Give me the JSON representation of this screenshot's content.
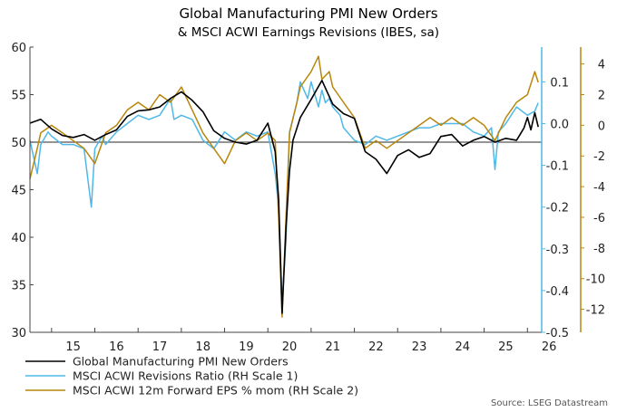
{
  "chart_data": {
    "type": "line",
    "title": "Global Manufacturing PMI New Orders",
    "subtitle": "& MSCI ACWI Earnings Revisions (IBES, sa)",
    "source": "Source: LSEG Datastream",
    "x_tick_labels": [
      "15",
      "16",
      "17",
      "18",
      "19",
      "20",
      "21",
      "22",
      "23",
      "24",
      "25",
      "26"
    ],
    "x_range": [
      2014.5,
      2026.33
    ],
    "left_axis": {
      "ylim": [
        30,
        60
      ],
      "ticks": [
        "30",
        "35",
        "40",
        "45",
        "50",
        "55",
        "60"
      ]
    },
    "right_axis_1": {
      "ylim": [
        -0.5,
        0.1833
      ],
      "ticks": [
        "-0.5",
        "-0.4",
        "-0.3",
        "-0.2",
        "-0.1",
        "0.0",
        "0.1"
      ],
      "color": "#4fb8e8"
    },
    "right_axis_2": {
      "ylim": [
        -13.5,
        5.1
      ],
      "ticks": [
        "-12",
        "-10",
        "-8",
        "-6",
        "-4",
        "-2",
        "0",
        "2",
        "4"
      ],
      "color": "#b8860b"
    },
    "reference_line": {
      "value": 50,
      "axis": "left"
    },
    "legend_placement": "bottom-left",
    "series": [
      {
        "name": "Global Manufacturing PMI New Orders",
        "axis": "left",
        "color": "#000000",
        "x": [
          2014.5,
          2014.75,
          2015.0,
          2015.25,
          2015.5,
          2015.75,
          2016.0,
          2016.25,
          2016.5,
          2016.75,
          2017.0,
          2017.25,
          2017.5,
          2017.75,
          2018.0,
          2018.25,
          2018.5,
          2018.75,
          2019.0,
          2019.25,
          2019.5,
          2019.75,
          2020.0,
          2020.17,
          2020.25,
          2020.33,
          2020.42,
          2020.5,
          2020.58,
          2020.75,
          2021.0,
          2021.25,
          2021.5,
          2021.75,
          2022.0,
          2022.25,
          2022.5,
          2022.75,
          2023.0,
          2023.25,
          2023.5,
          2023.75,
          2024.0,
          2024.25,
          2024.5,
          2024.75,
          2025.0,
          2025.25,
          2025.5,
          2025.75,
          2025.92,
          2026.0,
          2026.08,
          2026.17,
          2026.25
        ],
        "values": [
          52.0,
          52.4,
          51.4,
          50.7,
          50.5,
          50.8,
          50.2,
          50.8,
          51.3,
          52.7,
          53.3,
          53.4,
          53.7,
          54.6,
          55.3,
          54.4,
          53.2,
          51.2,
          50.4,
          50.0,
          49.8,
          50.2,
          52.0,
          49.0,
          44.0,
          32.0,
          41.0,
          47.0,
          50.2,
          52.6,
          54.5,
          56.5,
          54.0,
          53.0,
          52.5,
          49.0,
          48.2,
          46.7,
          48.6,
          49.2,
          48.4,
          48.8,
          50.6,
          50.8,
          49.6,
          50.2,
          50.6,
          50.0,
          50.4,
          50.2,
          51.5,
          52.6,
          51.3,
          53.1,
          51.6
        ]
      },
      {
        "name": "MSCI ACWI Revisions Ratio (RH Scale 1)",
        "axis": "right_1",
        "color": "#4fb8e8",
        "x": [
          2014.5,
          2014.67,
          2014.75,
          2014.92,
          2015.0,
          2015.25,
          2015.5,
          2015.75,
          2015.92,
          2016.0,
          2016.17,
          2016.25,
          2016.5,
          2016.75,
          2017.0,
          2017.25,
          2017.5,
          2017.75,
          2017.83,
          2018.0,
          2018.25,
          2018.5,
          2018.75,
          2019.0,
          2019.25,
          2019.5,
          2019.75,
          2020.0,
          2020.17,
          2020.25,
          2020.33,
          2020.42,
          2020.5,
          2020.67,
          2020.75,
          2020.92,
          2021.0,
          2021.17,
          2021.25,
          2021.33,
          2021.42,
          2021.5,
          2021.67,
          2021.75,
          2022.0,
          2022.25,
          2022.5,
          2022.75,
          2023.0,
          2023.25,
          2023.5,
          2023.75,
          2024.0,
          2024.25,
          2024.5,
          2024.75,
          2025.0,
          2025.17,
          2025.25,
          2025.33,
          2025.5,
          2025.75,
          2026.0,
          2026.17,
          2026.25
        ],
        "values": [
          -0.04,
          -0.12,
          -0.05,
          -0.02,
          -0.03,
          -0.05,
          -0.05,
          -0.06,
          -0.2,
          -0.06,
          -0.03,
          -0.05,
          -0.02,
          0.0,
          0.02,
          0.01,
          0.02,
          0.06,
          0.01,
          0.02,
          0.01,
          -0.04,
          -0.06,
          -0.02,
          -0.04,
          -0.02,
          -0.03,
          -0.02,
          -0.12,
          -0.2,
          -0.43,
          -0.28,
          -0.02,
          0.05,
          0.1,
          0.06,
          0.1,
          0.04,
          0.08,
          0.05,
          0.06,
          0.04,
          0.02,
          -0.01,
          -0.04,
          -0.05,
          -0.03,
          -0.04,
          -0.03,
          -0.02,
          -0.01,
          -0.01,
          0.0,
          0.0,
          0.0,
          -0.02,
          -0.03,
          -0.01,
          -0.11,
          -0.02,
          0.0,
          0.04,
          0.02,
          0.03,
          0.05
        ]
      },
      {
        "name": "MSCI ACWI 12m Forward EPS % mom (RH Scale 2)",
        "axis": "right_2",
        "color": "#b8860b",
        "x": [
          2014.5,
          2014.67,
          2014.75,
          2015.0,
          2015.25,
          2015.5,
          2015.75,
          2016.0,
          2016.25,
          2016.5,
          2016.75,
          2017.0,
          2017.25,
          2017.5,
          2017.75,
          2018.0,
          2018.25,
          2018.5,
          2018.75,
          2019.0,
          2019.25,
          2019.5,
          2019.75,
          2020.0,
          2020.17,
          2020.25,
          2020.33,
          2020.42,
          2020.5,
          2020.67,
          2020.75,
          2021.0,
          2021.17,
          2021.25,
          2021.42,
          2021.5,
          2021.75,
          2022.0,
          2022.25,
          2022.5,
          2022.75,
          2023.0,
          2023.25,
          2023.5,
          2023.75,
          2024.0,
          2024.25,
          2024.5,
          2024.75,
          2025.0,
          2025.25,
          2025.5,
          2025.75,
          2026.0,
          2026.17,
          2026.25
        ],
        "values": [
          -3.5,
          -1.5,
          -0.5,
          0.0,
          -0.5,
          -1.0,
          -1.5,
          -2.5,
          -0.5,
          0.0,
          1.0,
          1.5,
          1.0,
          2.0,
          1.5,
          2.5,
          1.0,
          -0.5,
          -1.5,
          -2.5,
          -1.0,
          -0.5,
          -1.0,
          -0.5,
          -1.0,
          -6.0,
          -12.5,
          -6.0,
          -0.5,
          1.5,
          2.5,
          3.5,
          4.5,
          3.0,
          3.5,
          2.5,
          1.5,
          0.5,
          -1.5,
          -1.0,
          -1.5,
          -1.0,
          -0.5,
          0.0,
          0.5,
          0.0,
          0.5,
          0.0,
          0.5,
          0.0,
          -1.0,
          0.5,
          1.5,
          2.0,
          3.5,
          2.8
        ]
      }
    ]
  }
}
